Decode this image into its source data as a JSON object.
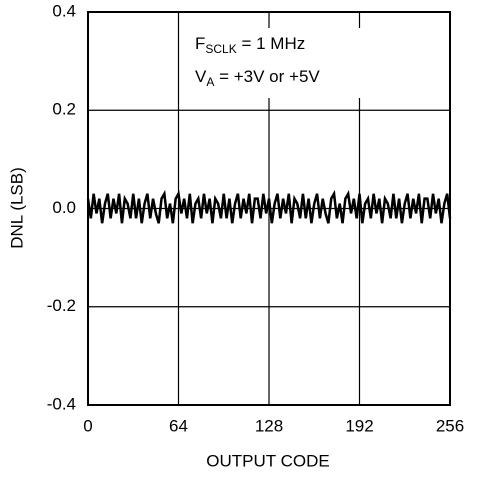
{
  "chart_data": {
    "type": "line",
    "xlabel": "OUTPUT CODE",
    "ylabel": "DNL (LSB)",
    "annotations": [
      {
        "main": "F",
        "sub": "SCLK",
        "rest": " = 1 MHz"
      },
      {
        "main": "V",
        "sub": "A",
        "rest": " = +3V or +5V"
      }
    ],
    "xlim": [
      0,
      256
    ],
    "xticks": [
      0,
      64,
      128,
      192,
      256
    ],
    "ylim": [
      -0.4,
      0.4
    ],
    "yticks": [
      0.4,
      0.2,
      {
        "value": 0,
        "label": "0.0"
      },
      -0.2,
      -0.4
    ],
    "grid": true,
    "color": "#000000",
    "x": [
      0,
      2,
      4,
      6,
      8,
      10,
      12,
      14,
      16,
      18,
      20,
      22,
      24,
      26,
      28,
      30,
      32,
      34,
      36,
      38,
      40,
      42,
      44,
      46,
      48,
      50,
      52,
      54,
      56,
      58,
      60,
      62,
      64,
      66,
      68,
      70,
      72,
      74,
      76,
      78,
      80,
      82,
      84,
      86,
      88,
      90,
      92,
      94,
      96,
      98,
      100,
      102,
      104,
      106,
      108,
      110,
      112,
      114,
      116,
      118,
      120,
      122,
      124,
      126,
      128,
      130,
      132,
      134,
      136,
      138,
      140,
      142,
      144,
      146,
      148,
      150,
      152,
      154,
      156,
      158,
      160,
      162,
      164,
      166,
      168,
      170,
      172,
      174,
      176,
      178,
      180,
      182,
      184,
      186,
      188,
      190,
      192,
      194,
      196,
      198,
      200,
      202,
      204,
      206,
      208,
      210,
      212,
      214,
      216,
      218,
      220,
      222,
      224,
      226,
      228,
      230,
      232,
      234,
      236,
      238,
      240,
      242,
      244,
      246,
      248,
      250,
      252,
      254,
      256
    ],
    "values": [
      0.02,
      -0.02,
      0.03,
      -0.01,
      0.02,
      -0.03,
      0.01,
      0.03,
      -0.02,
      0.02,
      -0.01,
      0.03,
      -0.03,
      0.02,
      0.01,
      -0.02,
      0.03,
      -0.02,
      0.02,
      -0.03,
      0.01,
      0.03,
      -0.02,
      0.02,
      -0.01,
      -0.03,
      0.02,
      0.03,
      -0.02,
      0.01,
      -0.03,
      0.02,
      0.03,
      -0.01,
      0.02,
      -0.02,
      0.03,
      -0.03,
      0.01,
      0.02,
      -0.02,
      0.03,
      -0.01,
      0.02,
      -0.03,
      0.02,
      0.01,
      -0.02,
      0.03,
      -0.02,
      0.02,
      -0.03,
      0.01,
      0.03,
      -0.02,
      0.02,
      -0.01,
      0.03,
      -0.03,
      0.02,
      0.02,
      -0.02,
      0.03,
      -0.01,
      0.02,
      -0.03,
      0.01,
      0.03,
      -0.02,
      0.02,
      -0.01,
      0.03,
      -0.03,
      0.02,
      0.01,
      -0.02,
      0.03,
      -0.02,
      0.02,
      -0.03,
      0.01,
      0.03,
      -0.02,
      0.02,
      -0.01,
      -0.03,
      0.02,
      0.03,
      -0.02,
      0.01,
      -0.03,
      0.02,
      0.03,
      -0.01,
      0.02,
      -0.02,
      0.03,
      -0.03,
      0.01,
      0.02,
      -0.02,
      0.03,
      -0.01,
      0.02,
      -0.03,
      0.02,
      0.01,
      -0.02,
      0.03,
      -0.02,
      0.02,
      -0.03,
      0.01,
      0.03,
      -0.02,
      0.02,
      -0.01,
      0.03,
      -0.03,
      0.02,
      0.02,
      -0.02,
      0.03,
      -0.01,
      0.02,
      -0.03,
      0.01,
      0.03,
      -0.02
    ]
  }
}
